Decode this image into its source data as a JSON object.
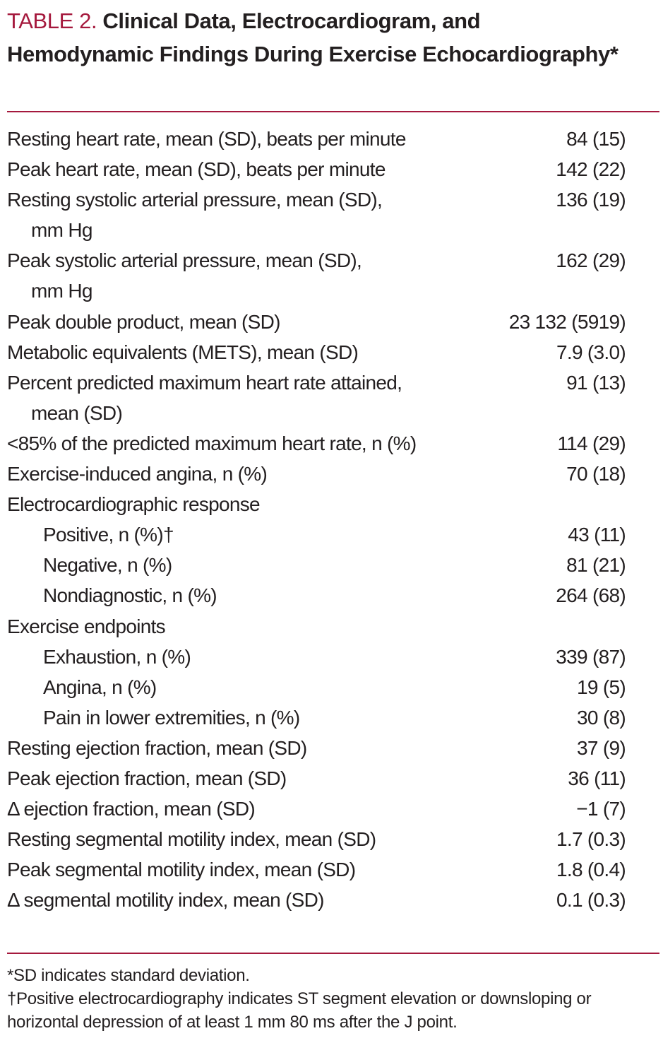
{
  "header": {
    "label": "TABLE 2.",
    "title": "Clinical Data, Electrocardiogram, and Hemodynamic Findings During Exercise Echocardiography*"
  },
  "table": {
    "rows": [
      {
        "label": "Resting heart rate, mean (SD), beats per minute",
        "value": "84 (15)"
      },
      {
        "label": "Peak heart rate, mean (SD), beats per minute",
        "value": "142 (22)"
      },
      {
        "label": [
          "Resting systolic arterial pressure, mean (SD),",
          "mm  Hg"
        ],
        "value": "136 (19)"
      },
      {
        "label": [
          "Peak systolic arterial pressure, mean (SD),",
          "mm  Hg"
        ],
        "value": "162 (29)"
      },
      {
        "label": "Peak double product, mean (SD)",
        "value": "23  132 (5919)"
      },
      {
        "label": "Metabolic equivalents (METS), mean (SD)",
        "value": "7.9 (3.0)"
      },
      {
        "label": [
          "Percent predicted maximum heart rate attained,",
          "mean (SD)"
        ],
        "value": "91 (13)"
      },
      {
        "label": "<85% of the predicted maximum heart rate, n (%)",
        "value": "114 (29)"
      },
      {
        "label": "Exercise-induced angina, n (%)",
        "value": "70 (18)"
      },
      {
        "label": "Electrocardiographic response",
        "subrows": [
          {
            "label": "Positive, n (%)†",
            "value": "43 (11)"
          },
          {
            "label": "Negative, n (%)",
            "value": "81 (21)"
          },
          {
            "label": "Nondiagnostic, n (%)",
            "value": "264 (68)"
          }
        ]
      },
      {
        "label": "Exercise endpoints",
        "subrows": [
          {
            "label": "Exhaustion, n (%)",
            "value": "339 (87)"
          },
          {
            "label": "Angina, n (%)",
            "value": "19 (5)"
          },
          {
            "label": "Pain in lower extremities, n (%)",
            "value": "30 (8)"
          }
        ]
      },
      {
        "label": "Resting ejection fraction, mean (SD)",
        "value": "37 (9)"
      },
      {
        "label": "Peak ejection fraction, mean (SD)",
        "value": "36 (11)"
      },
      {
        "label": "Δ ejection fraction, mean (SD)",
        "value": "−1 (7)"
      },
      {
        "label": "Resting segmental motility index, mean (SD)",
        "value": "1.7 (0.3)"
      },
      {
        "label": "Peak segmental motility index, mean (SD)",
        "value": "1.8 (0.4)"
      },
      {
        "label": "Δ segmental motility index, mean (SD)",
        "value": "0.1 (0.3)"
      }
    ]
  },
  "footnotes": [
    "*SD indicates standard deviation.",
    "†Positive electrocardiography indicates ST segment elevation or downsloping or horizontal depression of at least 1 mm 80 ms after the J point."
  ]
}
